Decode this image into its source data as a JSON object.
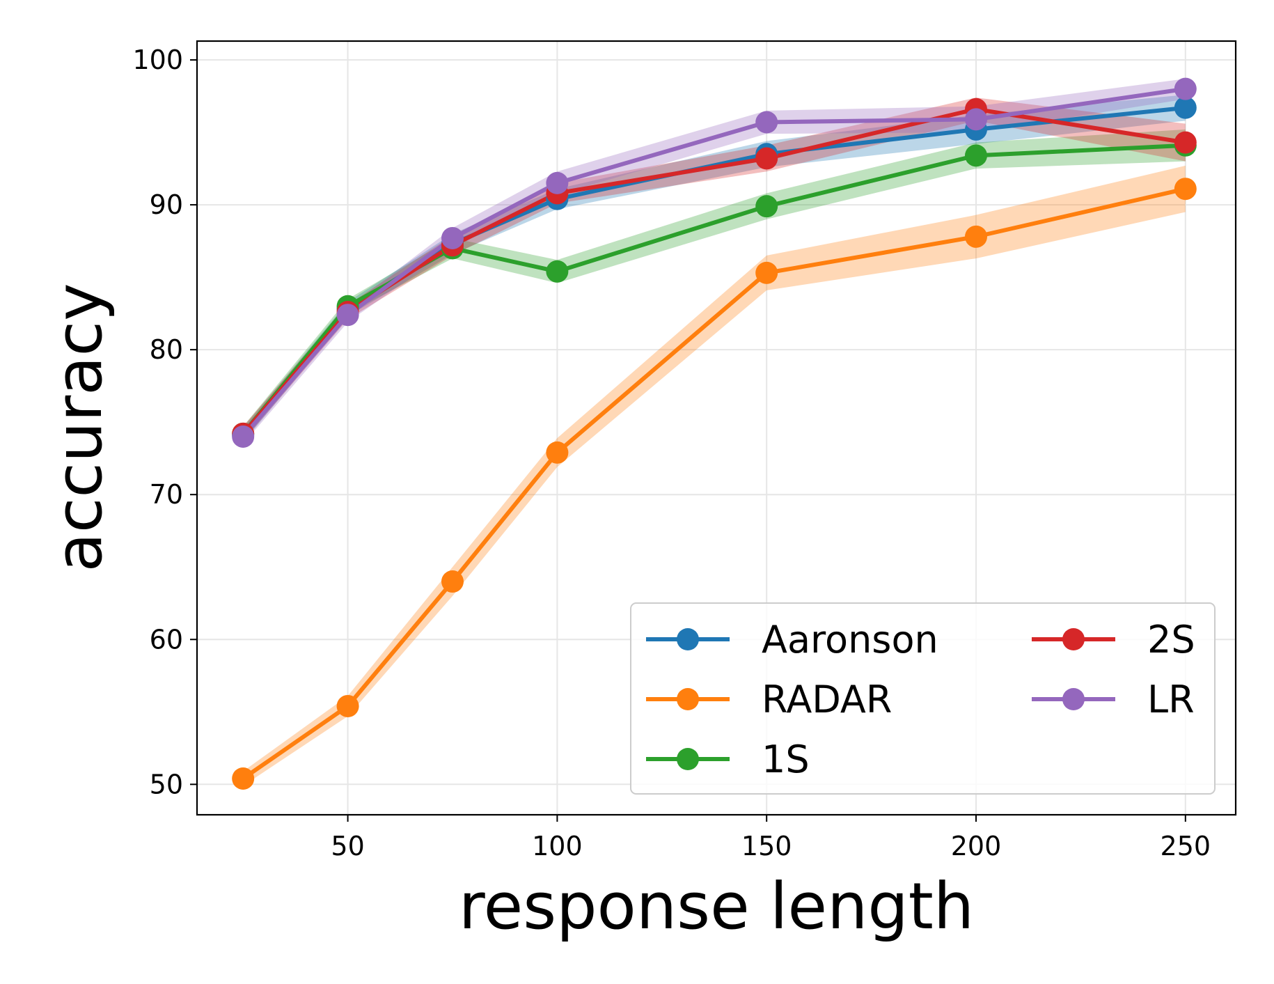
{
  "chart_data": {
    "type": "line",
    "title": "",
    "xlabel": "response length",
    "ylabel": "accuracy",
    "xlim": [
      14,
      262
    ],
    "ylim": [
      47.9,
      101.3
    ],
    "xticks": [
      50,
      100,
      150,
      200,
      250
    ],
    "yticks": [
      50,
      60,
      70,
      80,
      90,
      100
    ],
    "grid": true,
    "legend_location": "lower-right",
    "x": [
      25,
      50,
      75,
      100,
      150,
      200,
      250
    ],
    "series": [
      {
        "name": "Aaronson",
        "color": "#1f77b4",
        "values": [
          74.1,
          82.8,
          87.3,
          90.4,
          93.5,
          95.2,
          96.7
        ],
        "lower": [
          73.6,
          82.3,
          86.6,
          89.7,
          92.6,
          94.2,
          95.8
        ],
        "upper": [
          74.6,
          83.3,
          88.0,
          91.1,
          94.4,
          96.2,
          97.6
        ]
      },
      {
        "name": "RADAR",
        "color": "#ff7f0e",
        "values": [
          50.4,
          55.4,
          64.0,
          72.9,
          85.3,
          87.8,
          91.1
        ],
        "lower": [
          49.9,
          54.7,
          63.0,
          71.9,
          84.1,
          86.3,
          89.5
        ],
        "upper": [
          50.9,
          56.1,
          65.0,
          73.9,
          86.5,
          89.3,
          92.7
        ]
      },
      {
        "name": "1S",
        "color": "#2ca02c",
        "values": [
          74.2,
          83.0,
          87.0,
          85.4,
          89.9,
          93.4,
          94.1
        ],
        "lower": [
          73.7,
          82.5,
          86.3,
          84.6,
          89.0,
          92.5,
          93.0
        ],
        "upper": [
          74.7,
          83.5,
          87.7,
          86.2,
          90.8,
          94.3,
          95.2
        ]
      },
      {
        "name": "2S",
        "color": "#d62728",
        "values": [
          74.2,
          82.6,
          87.2,
          90.8,
          93.2,
          96.6,
          94.3
        ],
        "lower": [
          73.7,
          82.1,
          86.5,
          90.1,
          92.3,
          95.8,
          93.0
        ],
        "upper": [
          74.7,
          83.1,
          87.9,
          91.5,
          94.1,
          97.4,
          95.6
        ]
      },
      {
        "name": "LR",
        "color": "#9467bd",
        "values": [
          74.0,
          82.4,
          87.7,
          91.5,
          95.7,
          95.9,
          98.0
        ],
        "lower": [
          73.5,
          81.9,
          87.0,
          90.7,
          94.9,
          95.0,
          97.3
        ],
        "upper": [
          74.5,
          82.9,
          88.4,
          92.3,
          96.5,
          96.8,
          98.7
        ]
      }
    ]
  }
}
